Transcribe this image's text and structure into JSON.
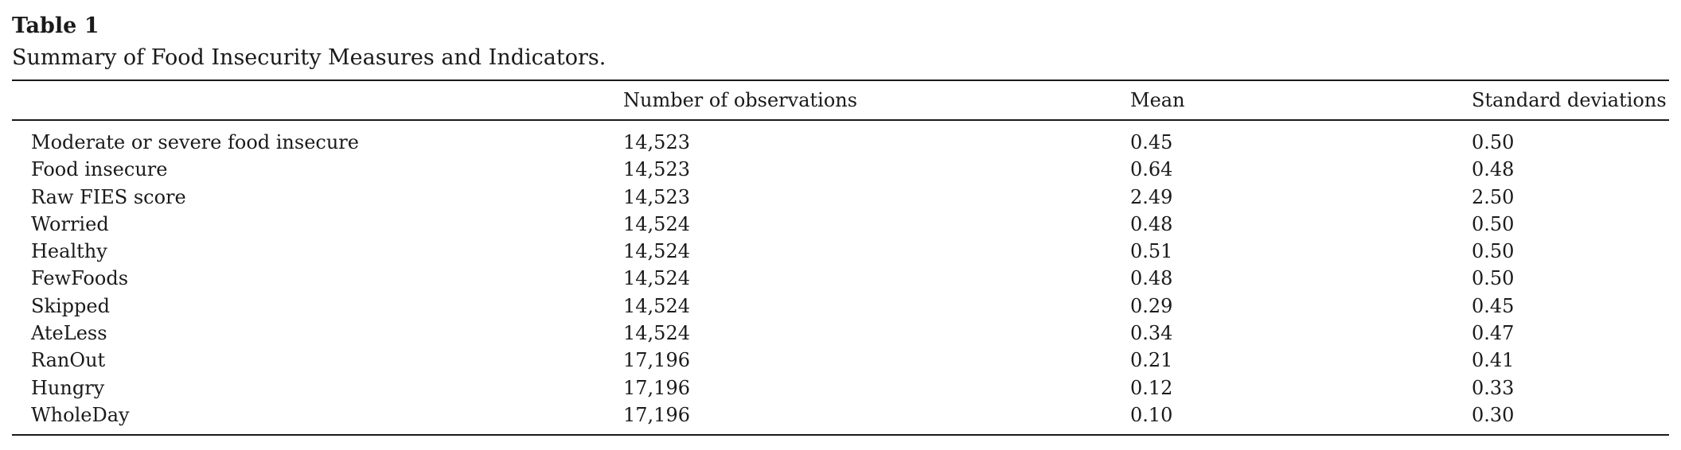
{
  "table": {
    "label": "Table 1",
    "caption": "Summary of Food Insecurity Measures and Indicators.",
    "columns": [
      "",
      "Number of observations",
      "Mean",
      "Standard deviations"
    ],
    "rows": [
      [
        "Moderate or severe food insecure",
        "14,523",
        "0.45",
        "0.50"
      ],
      [
        "Food insecure",
        "14,523",
        "0.64",
        "0.48"
      ],
      [
        "Raw FIES score",
        "14,523",
        "2.49",
        "2.50"
      ],
      [
        "Worried",
        "14,524",
        "0.48",
        "0.50"
      ],
      [
        "Healthy",
        "14,524",
        "0.51",
        "0.50"
      ],
      [
        "FewFoods",
        "14,524",
        "0.48",
        "0.50"
      ],
      [
        "Skipped",
        "14,524",
        "0.29",
        "0.45"
      ],
      [
        "AteLess",
        "14,524",
        "0.34",
        "0.47"
      ],
      [
        "RanOut",
        "17,196",
        "0.21",
        "0.41"
      ],
      [
        "Hungry",
        "17,196",
        "0.12",
        "0.33"
      ],
      [
        "WholeDay",
        "17,196",
        "0.10",
        "0.30"
      ]
    ]
  }
}
